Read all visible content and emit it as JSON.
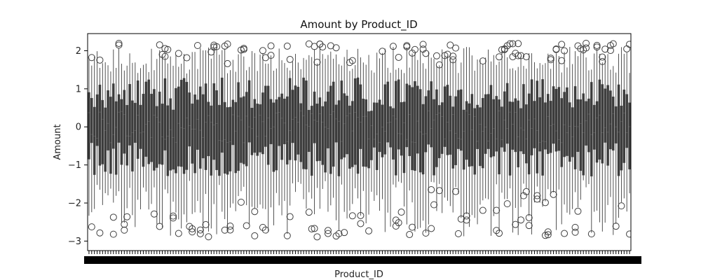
{
  "chart_data": {
    "type": "box",
    "title": "Amount by Product_ID",
    "xlabel": "Product_ID",
    "ylabel": "Amount",
    "ylim": [
      -3.25,
      2.45
    ],
    "yticks": [
      -3,
      -2,
      -1,
      0,
      1,
      2
    ],
    "ytick_labels": [
      "−3",
      "−2",
      "−1",
      "0",
      "1",
      "2"
    ],
    "grid": false,
    "legend": "none",
    "n_categories": 200,
    "category_labels": "dense, overlapping and illegible",
    "value_summary": {
      "typical_median_range": [
        -0.7,
        0.7
      ],
      "typical_q1_range": [
        -1.3,
        -0.4
      ],
      "typical_q3_range": [
        0.4,
        1.3
      ],
      "whisker_low_range": [
        -2.9,
        -1.4
      ],
      "whisker_high_range": [
        1.4,
        2.1
      ],
      "outlier_range": [
        -2.9,
        2.2
      ]
    },
    "colors": {
      "box_fill": "#3c3c3c",
      "box_edge": "#3f3f3f",
      "whisker": "#3f3f3f",
      "outlier_edge": "#3f3f3f"
    }
  }
}
